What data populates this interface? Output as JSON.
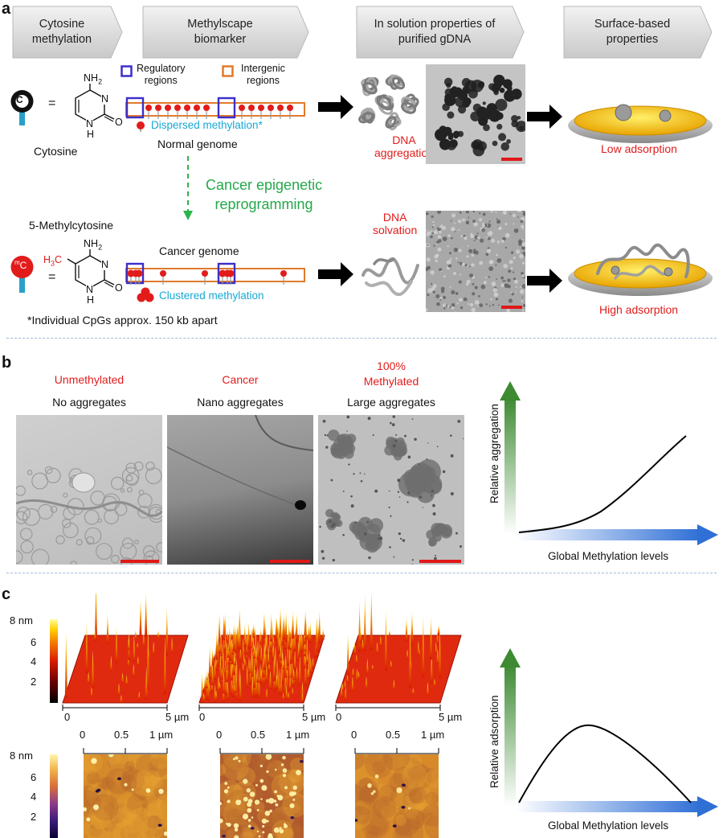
{
  "panels": {
    "a": "a",
    "b": "b",
    "c": "c"
  },
  "header_arrows": [
    "Cytosine\nmethylation",
    "Methylscape\nbiomarker",
    "In solution properties of\npurified gDNA",
    "Surface-based\nproperties"
  ],
  "panel_a": {
    "cytosine_label": "Cytosine",
    "methylcytosine_label": "5-Methylcytosine",
    "c_symbol": "C",
    "mc_symbol_sup": "m",
    "mc_symbol": "C",
    "equals": "=",
    "nh2": "NH",
    "nh2_sub": "2",
    "ring_n": "N",
    "ring_o": "O",
    "ring_h": "H",
    "methyl_h": "H",
    "methyl_3": "3",
    "methyl_c": "C",
    "legend_regulatory": "Regulatory\nregions",
    "legend_intergenic": "Intergenic\nregions",
    "dispersed_methylation": "Dispersed methylation*",
    "normal_genome": "Normal genome",
    "reprogramming": "Cancer epigenetic\nreprogramming",
    "cancer_genome": "Cancer genome",
    "clustered_methylation": "Clustered methylation",
    "footnote": "*Individual CpGs approx. 150 kb apart",
    "dna_aggregation": "DNA\naggregation",
    "dna_solvation": "DNA\nsolvation",
    "low_adsorption": "Low adsorption",
    "high_adsorption": "High adsorption",
    "colors": {
      "regulatory": "#3b2fc9",
      "intergenic": "#e07a2c",
      "methyl": "#e21b1b",
      "arrow_green": "#2db34a"
    }
  },
  "panel_b": {
    "samples": [
      {
        "name": "Unmethylated",
        "desc": "No aggregates"
      },
      {
        "name": "Cancer",
        "desc": "Nano aggregates"
      },
      {
        "name": "100%\nMethylated",
        "desc": "Large aggregates"
      }
    ],
    "ylabel": "Relative aggregation",
    "xlabel": "Global Methylation levels"
  },
  "panel_c": {
    "colorbar_unit": "8 nm",
    "colorbar_ticks": [
      "6",
      "4",
      "2"
    ],
    "axis_3d_start": "0",
    "axis_3d_end": "5 µm",
    "axis_2d_ticks": [
      "0",
      "0.5",
      "1 µm"
    ],
    "ylabel": "Relative adsorption",
    "xlabel": "Global Methylation levels"
  }
}
